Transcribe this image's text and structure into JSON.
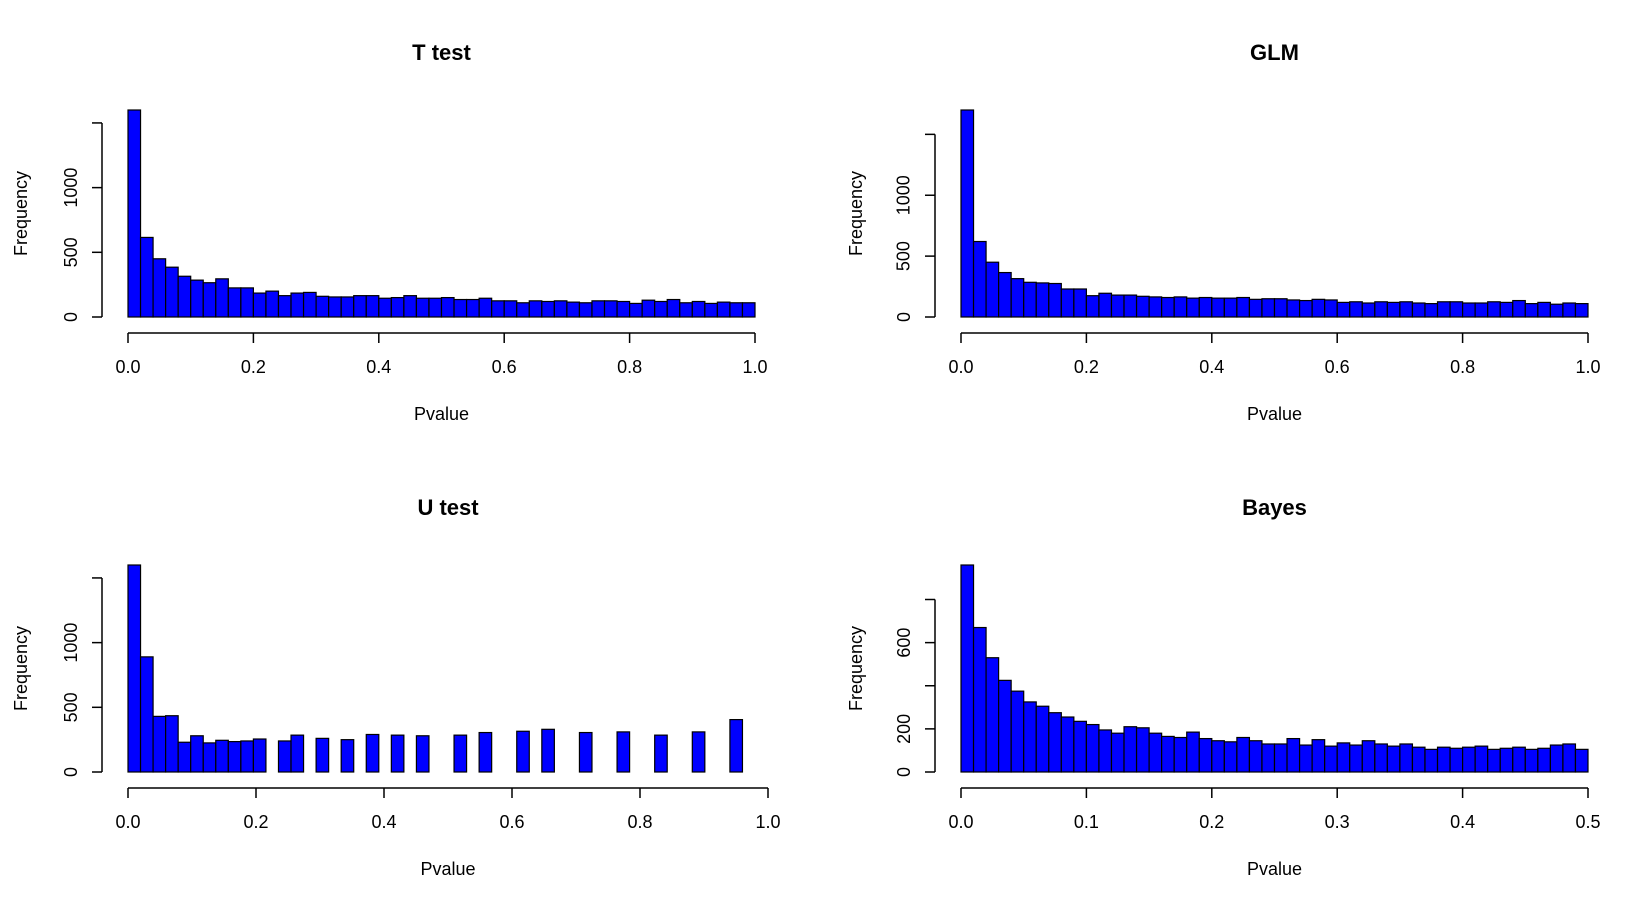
{
  "chart_data": [
    {
      "type": "bar",
      "title": "T test",
      "xlabel": "Pvalue",
      "ylabel": "Frequency",
      "xlim": [
        0,
        1
      ],
      "ylim": [
        0,
        1600
      ],
      "x_ticks": [
        "0.0",
        "0.2",
        "0.4",
        "0.6",
        "0.8",
        "1.0"
      ],
      "y_ticks": [
        "0",
        "500",
        "1000"
      ],
      "bin_width": 0.02,
      "bar_color": "#0000ff",
      "values": [
        1600,
        615,
        450,
        385,
        315,
        285,
        265,
        295,
        225,
        225,
        185,
        200,
        165,
        185,
        190,
        160,
        155,
        155,
        165,
        165,
        145,
        150,
        165,
        145,
        145,
        150,
        135,
        135,
        145,
        125,
        125,
        110,
        125,
        120,
        125,
        115,
        110,
        125,
        125,
        120,
        105,
        130,
        120,
        135,
        110,
        120,
        105,
        115,
        110,
        110
      ]
    },
    {
      "type": "bar",
      "title": "GLM",
      "xlabel": "Pvalue",
      "ylabel": "Frequency",
      "xlim": [
        0,
        1
      ],
      "ylim": [
        0,
        1700
      ],
      "x_ticks": [
        "0.0",
        "0.2",
        "0.4",
        "0.6",
        "0.8",
        "1.0"
      ],
      "y_ticks": [
        "0",
        "500",
        "1000"
      ],
      "bin_width": 0.02,
      "bar_color": "#0000ff",
      "values": [
        1700,
        620,
        450,
        365,
        315,
        285,
        280,
        275,
        230,
        230,
        175,
        195,
        180,
        180,
        170,
        165,
        160,
        165,
        155,
        160,
        155,
        155,
        160,
        145,
        150,
        150,
        140,
        135,
        145,
        140,
        120,
        125,
        115,
        125,
        120,
        125,
        115,
        110,
        125,
        125,
        115,
        115,
        125,
        120,
        135,
        110,
        120,
        105,
        115,
        110
      ]
    },
    {
      "type": "bar",
      "title": "U test",
      "xlabel": "Pvalue",
      "ylabel": "Frequency",
      "xlim": [
        0,
        1
      ],
      "ylim": [
        0,
        1600
      ],
      "x_ticks": [
        "0.0",
        "0.2",
        "0.4",
        "0.6",
        "0.8",
        "1.0"
      ],
      "y_ticks": [
        "0",
        "500",
        "1000"
      ],
      "bin_width": 0.02,
      "bar_color": "#0000ff",
      "values": [
        1600,
        890,
        430,
        435,
        230,
        280,
        225,
        245,
        235,
        240,
        255,
        0,
        240,
        285,
        0,
        260,
        0,
        250,
        0,
        290,
        0,
        285,
        0,
        280,
        0,
        0,
        285,
        0,
        305,
        0,
        0,
        315,
        0,
        330,
        0,
        0,
        305,
        0,
        0,
        310,
        0,
        0,
        285,
        0,
        0,
        310,
        0,
        0,
        405,
        0
      ]
    },
    {
      "type": "bar",
      "title": "Bayes",
      "xlabel": "Pvalue",
      "ylabel": "Frequency",
      "xlim": [
        0,
        0.5
      ],
      "ylim": [
        0,
        960
      ],
      "x_ticks": [
        "0.0",
        "0.1",
        "0.2",
        "0.3",
        "0.4",
        "0.5"
      ],
      "y_ticks": [
        "0",
        "200",
        "600"
      ],
      "bin_width": 0.01,
      "bar_color": "#0000ff",
      "values": [
        960,
        670,
        530,
        425,
        375,
        325,
        305,
        275,
        255,
        235,
        220,
        195,
        180,
        210,
        205,
        180,
        165,
        160,
        185,
        155,
        145,
        140,
        160,
        145,
        130,
        130,
        155,
        125,
        150,
        120,
        135,
        125,
        145,
        130,
        120,
        130,
        115,
        105,
        115,
        110,
        115,
        120,
        105,
        110,
        115,
        105,
        110,
        125,
        130,
        105
      ]
    }
  ]
}
